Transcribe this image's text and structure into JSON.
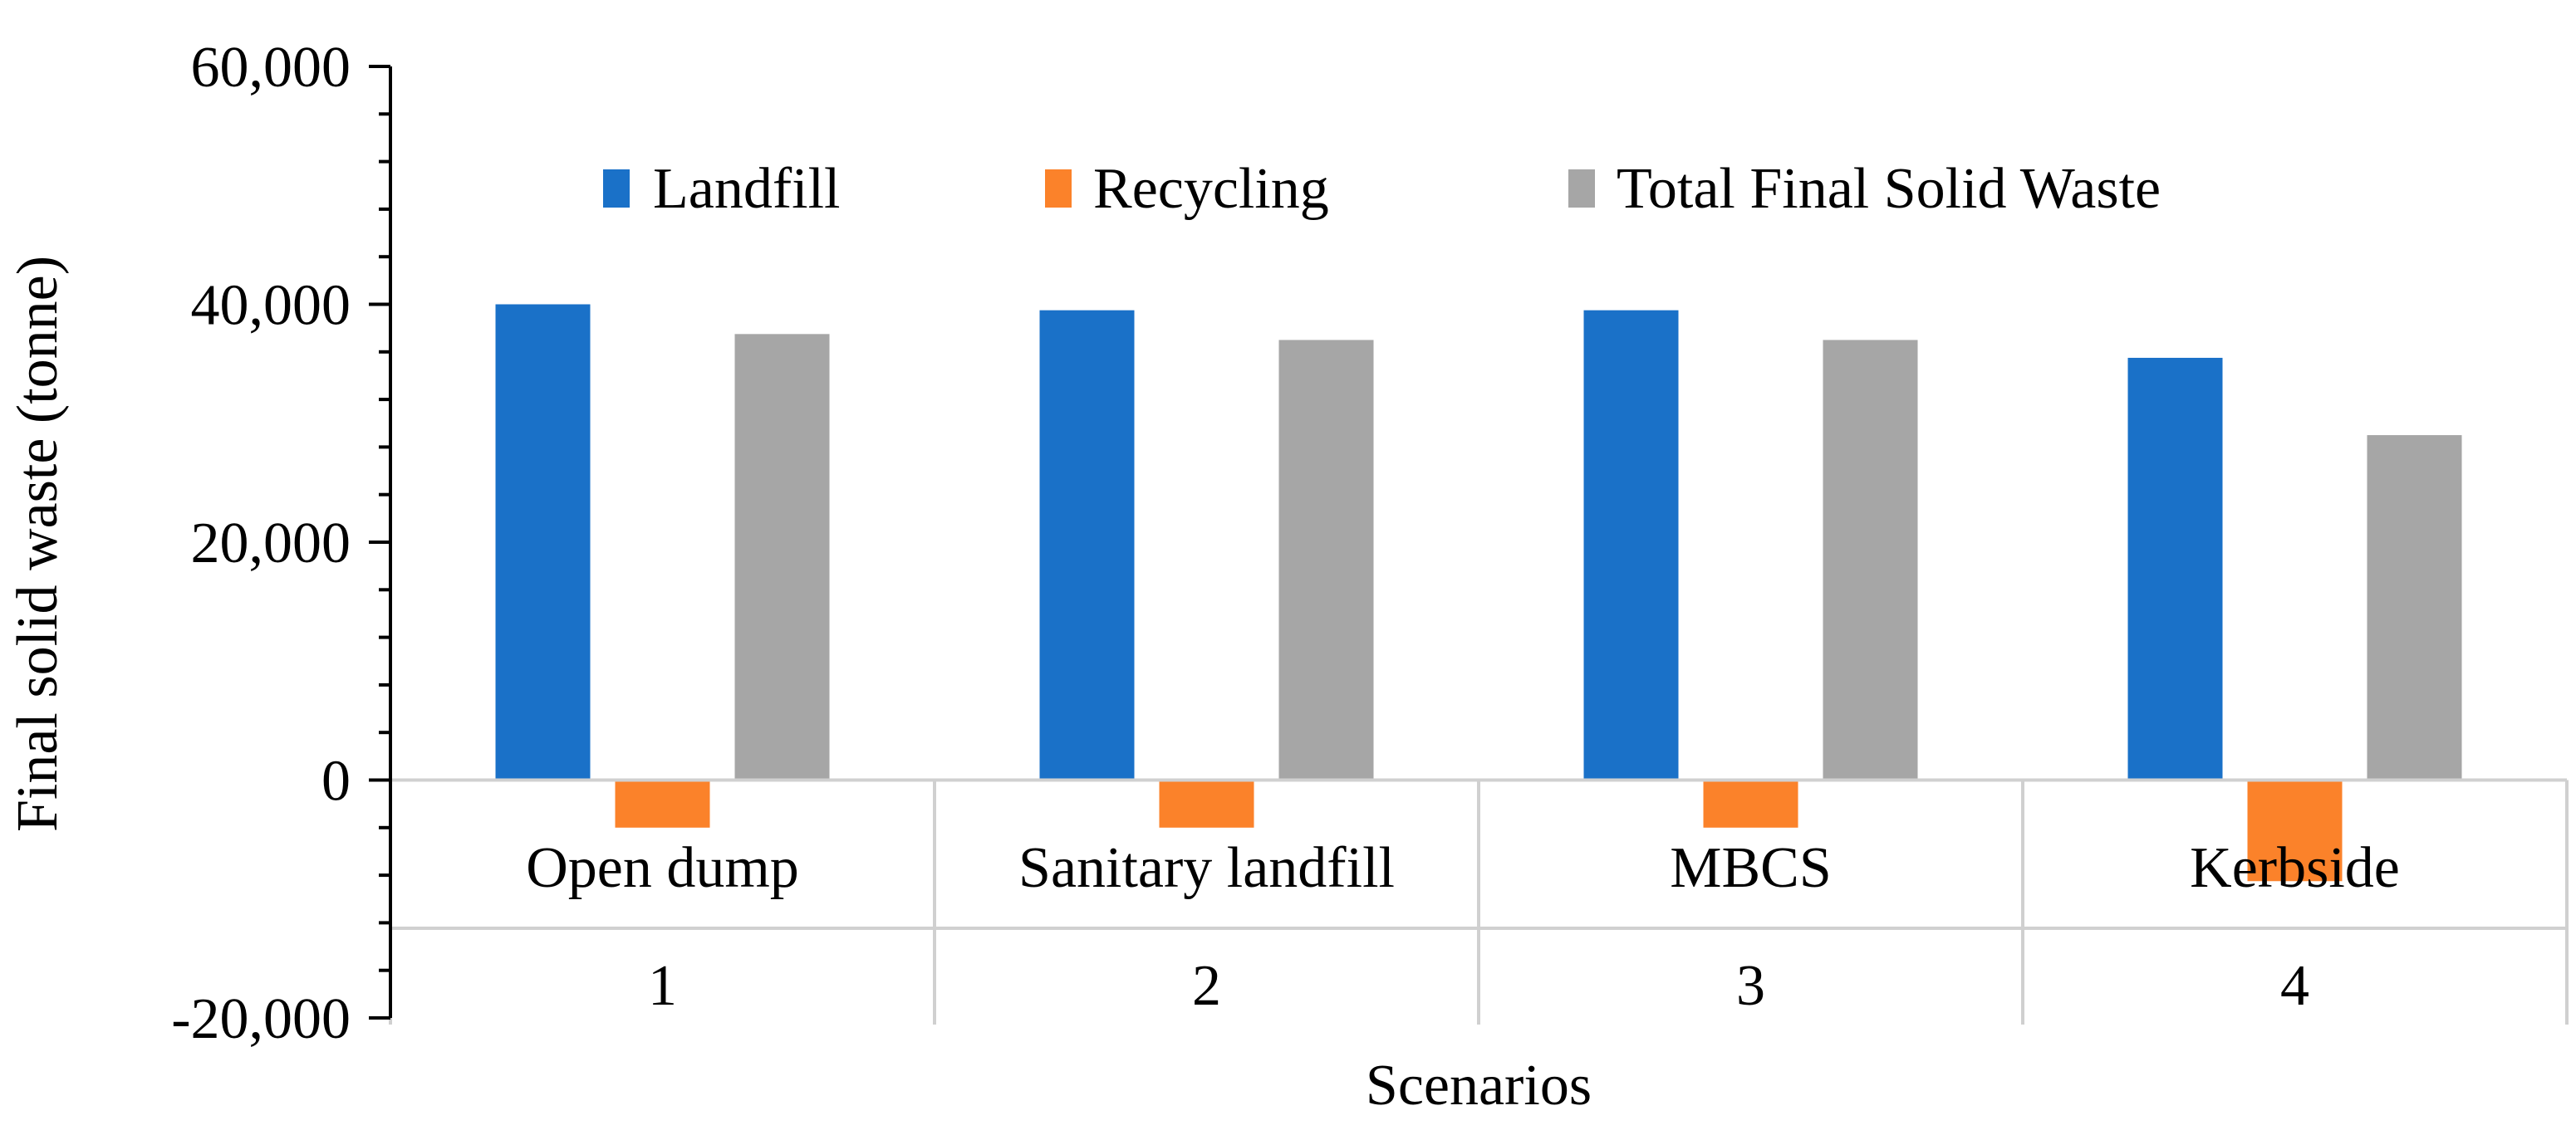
{
  "chart_data": {
    "type": "bar",
    "title": "",
    "xlabel": "Scenarios",
    "ylabel": "Final solid waste (tonne)",
    "ylim": [
      -20000,
      60000
    ],
    "yticks": [
      60000,
      40000,
      20000,
      0,
      -20000
    ],
    "ytick_labels": [
      "60,000",
      "40,000",
      "20,000",
      "0",
      "-20,000"
    ],
    "categories": [
      "Open dump",
      "Sanitary landfill",
      "MBCS",
      "Kerbside"
    ],
    "category_numbers": [
      "1",
      "2",
      "3",
      "4"
    ],
    "series": [
      {
        "name": "Landfill",
        "color": "#1a71c8",
        "values": [
          40000,
          39500,
          39500,
          35500
        ]
      },
      {
        "name": "Recycling",
        "color": "#fb822a",
        "values": [
          -4000,
          -4000,
          -4000,
          -8500
        ]
      },
      {
        "name": "Total Final Solid Waste",
        "color": "#a6a6a6",
        "values": [
          37500,
          37000,
          37000,
          29000
        ]
      }
    ],
    "legend_position": "top",
    "grid": false
  }
}
